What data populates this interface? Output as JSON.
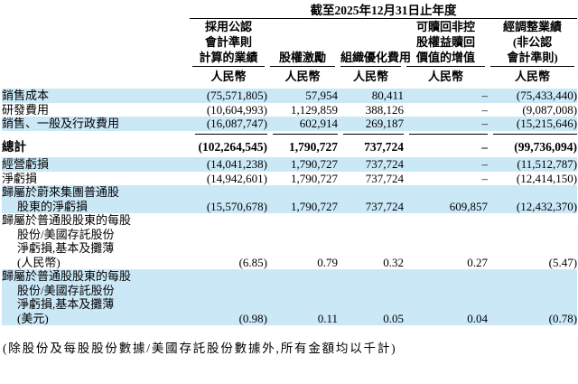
{
  "table": {
    "period_header": "截至2025年12月31日止年度",
    "currency_label": "人民幣",
    "columns": [
      {
        "name": "gaap-results",
        "label_lines": [
          "採用公認",
          "會計準則",
          "計算的業績"
        ]
      },
      {
        "name": "share-based-compensation",
        "label_lines": [
          "股權激勵"
        ]
      },
      {
        "name": "organization-optimization-expenses",
        "label_lines": [
          "組織優化費用"
        ]
      },
      {
        "name": "accretion-redeemable-nci",
        "label_lines": [
          "可贖回非控",
          "股權益贖回",
          "價值的增值"
        ]
      },
      {
        "name": "adjusted-non-gaap",
        "label_lines": [
          "經調整業績",
          "(非公認",
          "會計準則)"
        ]
      }
    ],
    "rows": [
      {
        "label_lines": [
          "銷售成本"
        ],
        "values": [
          "(75,571,805)",
          "57,954",
          "80,411",
          "–",
          "(75,433,440)"
        ],
        "striped": true,
        "total": false
      },
      {
        "label_lines": [
          "研發費用"
        ],
        "values": [
          "(10,604,993)",
          "1,129,859",
          "388,126",
          "–",
          "(9,087,008)"
        ],
        "striped": false,
        "total": false
      },
      {
        "label_lines": [
          "銷售、一般及行政費用"
        ],
        "values": [
          "(16,087,747)",
          "602,914",
          "269,187",
          "–",
          "(15,215,646)"
        ],
        "striped": true,
        "total": false
      },
      {
        "label_lines": [
          "總計"
        ],
        "values": [
          "(102,264,545)",
          "1,790,727",
          "737,724",
          "–",
          "(99,736,094)"
        ],
        "striped": false,
        "total": true
      },
      {
        "label_lines": [
          "經營虧損"
        ],
        "values": [
          "(14,041,238)",
          "1,790,727",
          "737,724",
          "–",
          "(11,512,787)"
        ],
        "striped": true,
        "total": false
      },
      {
        "label_lines": [
          "淨虧損"
        ],
        "values": [
          "(14,942,601)",
          "1,790,727",
          "737,724",
          "–",
          "(12,414,150)"
        ],
        "striped": false,
        "total": false
      },
      {
        "label_lines": [
          "歸屬於蔚來集團普通股",
          "股東的淨虧損"
        ],
        "values": [
          "(15,570,678)",
          "1,790,727",
          "737,724",
          "609,857",
          "(12,432,370)"
        ],
        "striped": true,
        "total": false
      },
      {
        "label_lines": [
          "歸屬於普通股股東的每股",
          "股份/美國存託股份",
          "淨虧損,基本及攤薄",
          "(人民幣)"
        ],
        "values": [
          "(6.85)",
          "0.79",
          "0.32",
          "0.27",
          "(5.47)"
        ],
        "striped": false,
        "total": false
      },
      {
        "label_lines": [
          "歸屬於普通股股東的每股",
          "股份/美國存託股份",
          "淨虧損,基本及攤薄",
          "(美元)"
        ],
        "values": [
          "(0.98)",
          "0.11",
          "0.05",
          "0.04",
          "(0.78)"
        ],
        "striped": true,
        "total": false
      }
    ]
  },
  "footnote": "(除股份及每股股份數據/美國存託股份數據外,所有金額均以千計)",
  "colors": {
    "stripe": "#cbe8f7",
    "text": "#000000"
  }
}
